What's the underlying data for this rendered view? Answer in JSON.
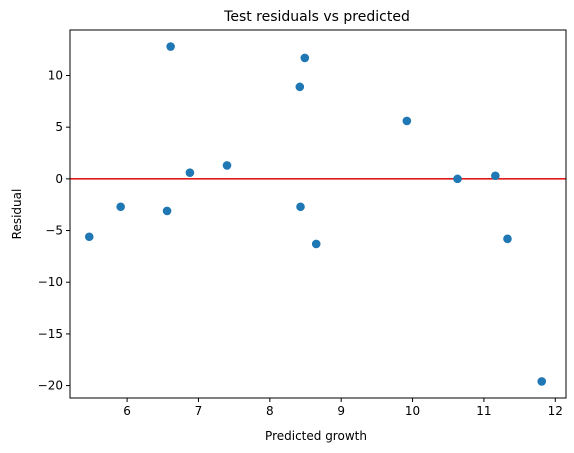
{
  "chart_data": {
    "type": "scatter",
    "title": "Test residuals vs predicted",
    "xlabel": "Predicted growth",
    "ylabel": "Residual",
    "xlim": [
      5.2,
      12.15
    ],
    "ylim": [
      -21.2,
      14.4
    ],
    "x_ticks": [
      6,
      7,
      8,
      9,
      10,
      11,
      12
    ],
    "y_ticks": [
      -20,
      -15,
      -10,
      -5,
      0,
      5,
      10
    ],
    "x_tick_labels": [
      "6",
      "7",
      "8",
      "9",
      "10",
      "11",
      "12"
    ],
    "y_tick_labels": [
      "−20",
      "−15",
      "−10",
      "−5",
      "0",
      "5",
      "10"
    ],
    "grid": false,
    "reference_line": {
      "y": 0,
      "color": "#e31a1c"
    },
    "marker_color": "#1f77b4",
    "points": [
      {
        "x": 5.47,
        "y": -5.6
      },
      {
        "x": 5.91,
        "y": -2.7
      },
      {
        "x": 6.56,
        "y": -3.1
      },
      {
        "x": 6.61,
        "y": 12.8
      },
      {
        "x": 6.88,
        "y": 0.6
      },
      {
        "x": 7.4,
        "y": 1.3
      },
      {
        "x": 8.42,
        "y": 8.9
      },
      {
        "x": 8.43,
        "y": -2.7
      },
      {
        "x": 8.49,
        "y": 11.7
      },
      {
        "x": 8.65,
        "y": -6.3
      },
      {
        "x": 9.92,
        "y": 5.6
      },
      {
        "x": 10.63,
        "y": 0.0
      },
      {
        "x": 11.16,
        "y": 0.3
      },
      {
        "x": 11.33,
        "y": -5.8
      },
      {
        "x": 11.81,
        "y": -19.6
      }
    ]
  }
}
